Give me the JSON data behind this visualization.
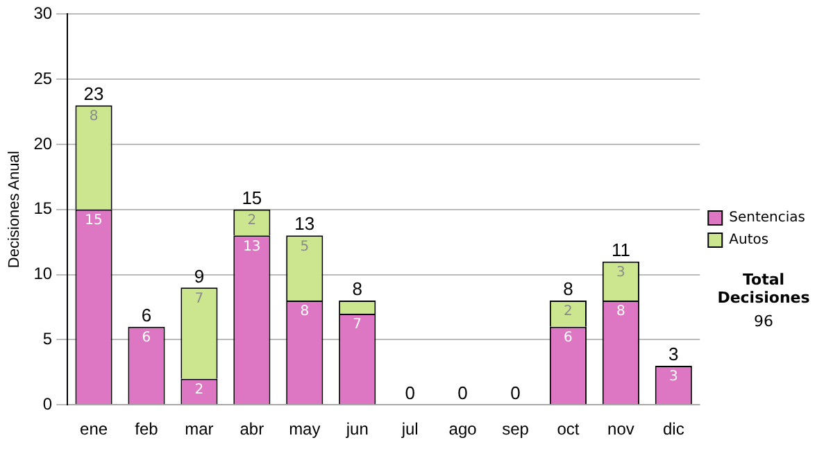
{
  "chart_data": {
    "type": "bar",
    "ylabel": "Decisiones Anual",
    "categories": [
      "ene",
      "feb",
      "mar",
      "abr",
      "may",
      "jun",
      "jul",
      "ago",
      "sep",
      "oct",
      "nov",
      "dic"
    ],
    "series": [
      {
        "name": "Sentencias",
        "color": "#dd77c4",
        "values": [
          15,
          6,
          2,
          13,
          8,
          7,
          0,
          0,
          0,
          6,
          8,
          3
        ],
        "value_labels": [
          "15",
          "6",
          "2",
          "13",
          "8",
          "7",
          null,
          null,
          null,
          "6",
          "8",
          "3"
        ]
      },
      {
        "name": "Autos",
        "color": "#cce68f",
        "values": [
          8,
          0,
          7,
          2,
          5,
          1,
          0,
          0,
          0,
          2,
          3,
          0
        ],
        "value_labels": [
          "8",
          null,
          "7",
          "2",
          "5",
          null,
          null,
          null,
          null,
          "2",
          "3",
          null
        ]
      }
    ],
    "stacked": true,
    "totals": [
      "23",
      "6",
      "9",
      "15",
      "13",
      "8",
      "0",
      "0",
      "0",
      "8",
      "11",
      "3"
    ],
    "ylim": [
      0,
      30
    ],
    "yticks": [
      0,
      5,
      10,
      15,
      20,
      25,
      30
    ],
    "grid": "y",
    "legend": "right",
    "annotations": [
      "Total Decisiones",
      "96"
    ]
  }
}
